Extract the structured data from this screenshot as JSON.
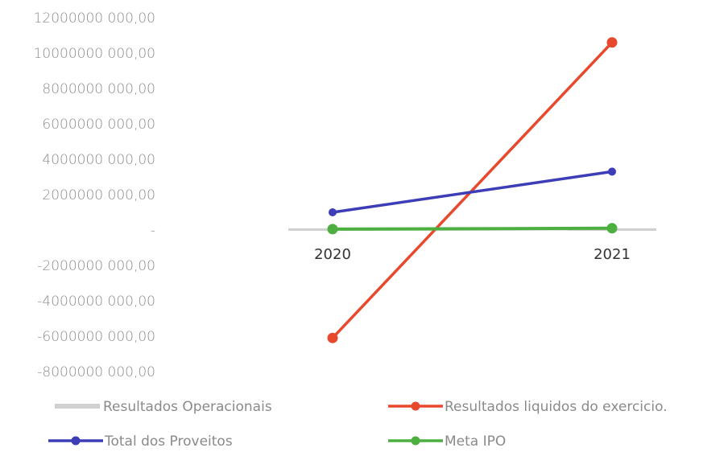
{
  "chart_data": {
    "type": "line",
    "title": "",
    "xlabel": "",
    "ylabel": "",
    "categories": [
      "2020",
      "2021"
    ],
    "ylim": [
      -8000000000,
      12000000000
    ],
    "y_ticks": [
      "12000000 000,00",
      "10000000 000,00",
      "8000000 000,00",
      "6000000 000,00",
      "4000000 000,00",
      "2000000 000,00",
      "-",
      "-2000000 000,00",
      "-4000000 000,00",
      "-6000000 000,00",
      "-8000000 000,00"
    ],
    "y_tick_values": [
      12000000000,
      10000000000,
      8000000000,
      6000000000,
      4000000000,
      2000000000,
      0,
      -2000000000,
      -4000000000,
      -6000000000,
      -8000000000
    ],
    "grid": false,
    "legend_position": "bottom",
    "series": [
      {
        "name": "Resultados Operacionais",
        "values": [
          50000000,
          50000000
        ],
        "color": "#d0d0d0",
        "style": "bar"
      },
      {
        "name": "Resultados liquidos do exercicio.",
        "values": [
          -6100000000,
          10600000000
        ],
        "color": "#e8492d",
        "style": "line"
      },
      {
        "name": "Total dos Proveitos",
        "values": [
          1000000000,
          3300000000
        ],
        "color": "#3d3db8",
        "style": "line"
      },
      {
        "name": "Meta IPO",
        "values": [
          50000000,
          100000000
        ],
        "color": "#4caf3f",
        "style": "line"
      }
    ]
  }
}
